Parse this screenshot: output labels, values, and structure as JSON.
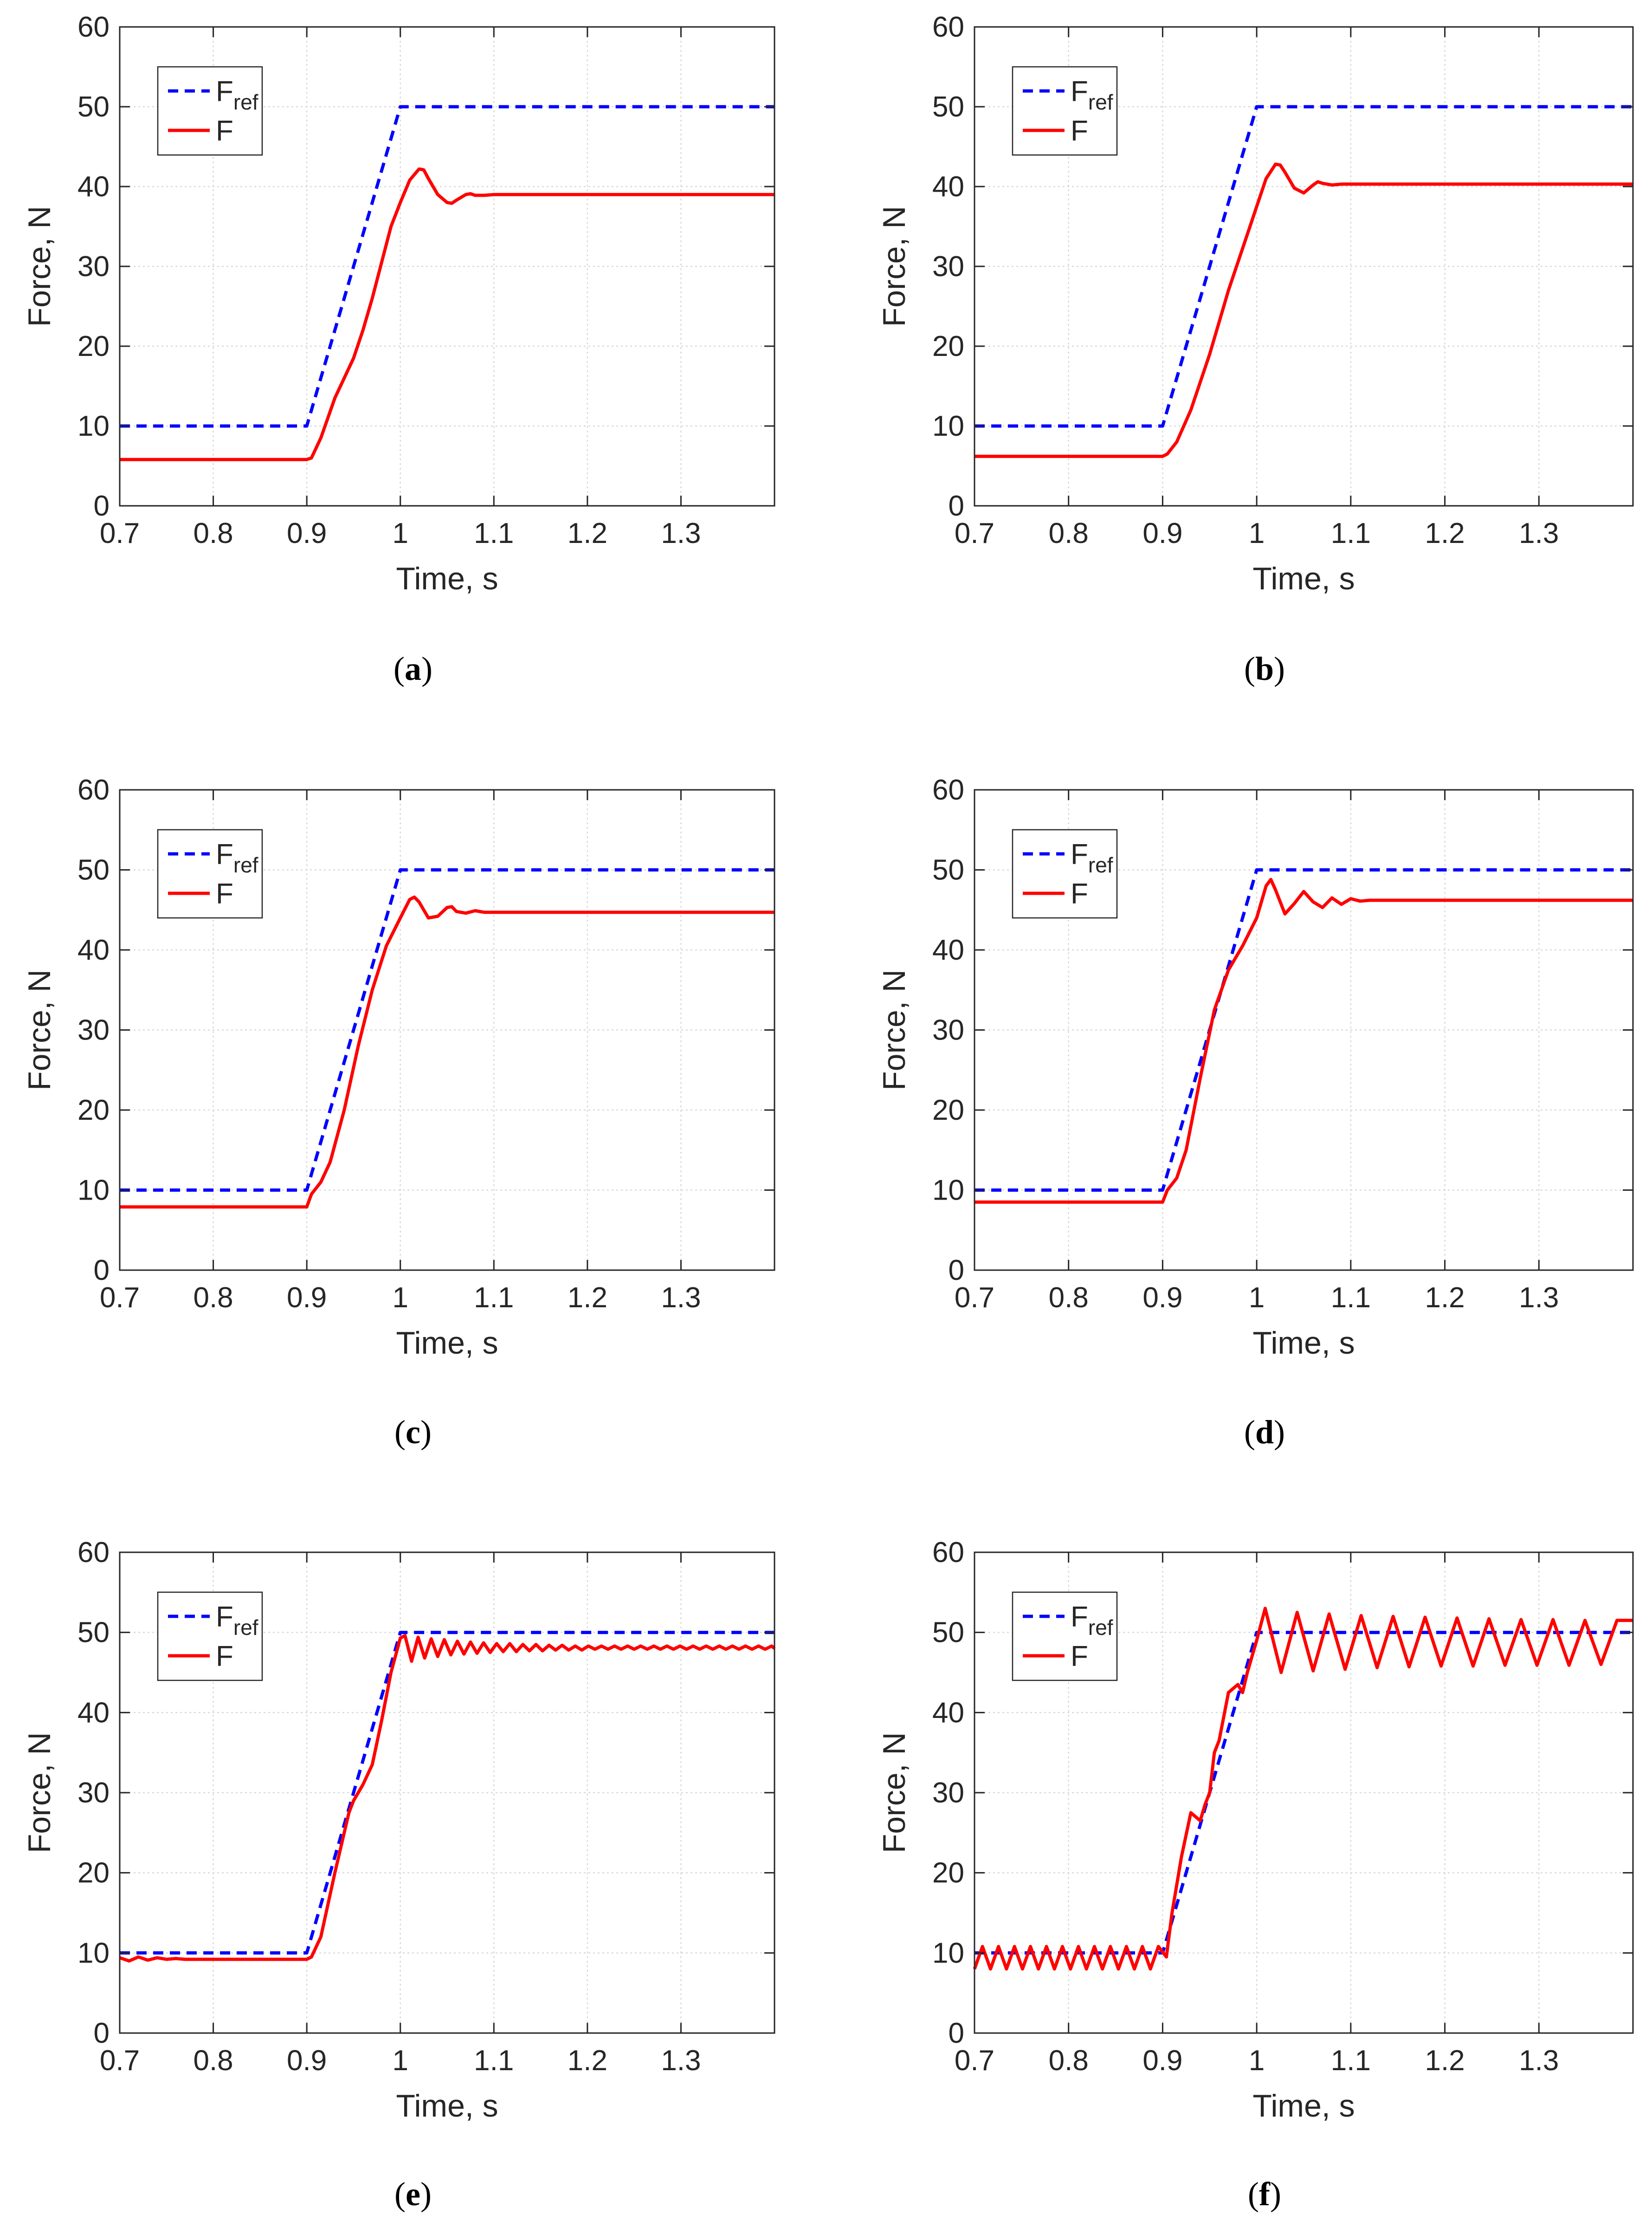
{
  "colors": {
    "reference": "#0000ff",
    "response": "#ff0000",
    "grid": "#d9d9d9",
    "axes": "#262626"
  },
  "chart_data": [
    {
      "type": "line",
      "caption_letter": "a",
      "title": "",
      "xlabel": "Time, s",
      "ylabel": "Force, N",
      "xlim": [
        0.7,
        1.4
      ],
      "ylim": [
        0,
        60
      ],
      "xticks": [
        0.7,
        0.8,
        0.9,
        1,
        1.1,
        1.2,
        1.3
      ],
      "yticks": [
        0,
        10,
        20,
        30,
        40,
        50,
        60
      ],
      "legend": {
        "position": "top-left",
        "entries": [
          {
            "name": "F",
            "sub": "ref"
          },
          {
            "name": "F",
            "sub": ""
          }
        ]
      },
      "series": [
        {
          "name": "F_ref",
          "style": "dashed",
          "color": "#0000ff",
          "x": [
            0.7,
            0.9,
            1.0,
            1.4
          ],
          "y": [
            10,
            10,
            50,
            50
          ]
        },
        {
          "name": "F",
          "style": "solid",
          "color": "#ff0000",
          "x": [
            0.7,
            0.9,
            0.905,
            0.915,
            0.93,
            0.94,
            0.95,
            0.96,
            0.97,
            0.98,
            0.99,
            1.0,
            1.01,
            1.02,
            1.025,
            1.03,
            1.04,
            1.05,
            1.055,
            1.06,
            1.07,
            1.075,
            1.08,
            1.09,
            1.1,
            1.4
          ],
          "y": [
            5.8,
            5.8,
            6.0,
            8.5,
            13.5,
            16.0,
            18.5,
            22.0,
            26.0,
            30.5,
            35.0,
            38.0,
            40.8,
            42.2,
            42.1,
            41.0,
            39.0,
            38.0,
            37.9,
            38.3,
            39.0,
            39.1,
            38.9,
            38.9,
            39.0,
            39.0
          ]
        }
      ]
    },
    {
      "type": "line",
      "caption_letter": "b",
      "title": "",
      "xlabel": "Time, s",
      "ylabel": "Force, N",
      "xlim": [
        0.7,
        1.4
      ],
      "ylim": [
        0,
        60
      ],
      "xticks": [
        0.7,
        0.8,
        0.9,
        1,
        1.1,
        1.2,
        1.3
      ],
      "yticks": [
        0,
        10,
        20,
        30,
        40,
        50,
        60
      ],
      "legend": {
        "position": "top-left",
        "entries": [
          {
            "name": "F",
            "sub": "ref"
          },
          {
            "name": "F",
            "sub": ""
          }
        ]
      },
      "series": [
        {
          "name": "F_ref",
          "style": "dashed",
          "color": "#0000ff",
          "x": [
            0.7,
            0.9,
            1.0,
            1.4
          ],
          "y": [
            10,
            10,
            50,
            50
          ]
        },
        {
          "name": "F",
          "style": "solid",
          "color": "#ff0000",
          "x": [
            0.7,
            0.9,
            0.905,
            0.915,
            0.93,
            0.95,
            0.97,
            0.99,
            1.0,
            1.01,
            1.02,
            1.025,
            1.03,
            1.04,
            1.05,
            1.06,
            1.065,
            1.07,
            1.08,
            1.09,
            1.4
          ],
          "y": [
            6.2,
            6.2,
            6.5,
            8.0,
            12.0,
            19.0,
            27.0,
            34.0,
            37.5,
            41.0,
            42.8,
            42.7,
            41.8,
            39.8,
            39.2,
            40.2,
            40.6,
            40.4,
            40.2,
            40.3,
            40.3
          ]
        }
      ]
    },
    {
      "type": "line",
      "caption_letter": "c",
      "title": "",
      "xlabel": "Time, s",
      "ylabel": "Force, N",
      "xlim": [
        0.7,
        1.4
      ],
      "ylim": [
        0,
        60
      ],
      "xticks": [
        0.7,
        0.8,
        0.9,
        1,
        1.1,
        1.2,
        1.3
      ],
      "yticks": [
        0,
        10,
        20,
        30,
        40,
        50,
        60
      ],
      "legend": {
        "position": "top-left",
        "entries": [
          {
            "name": "F",
            "sub": "ref"
          },
          {
            "name": "F",
            "sub": ""
          }
        ]
      },
      "series": [
        {
          "name": "F_ref",
          "style": "dashed",
          "color": "#0000ff",
          "x": [
            0.7,
            0.9,
            1.0,
            1.4
          ],
          "y": [
            10,
            10,
            50,
            50
          ]
        },
        {
          "name": "F",
          "style": "solid",
          "color": "#ff0000",
          "x": [
            0.7,
            0.9,
            0.905,
            0.915,
            0.925,
            0.94,
            0.955,
            0.97,
            0.985,
            1.0,
            1.01,
            1.015,
            1.02,
            1.03,
            1.04,
            1.05,
            1.055,
            1.06,
            1.07,
            1.08,
            1.09,
            1.4
          ],
          "y": [
            7.9,
            7.9,
            9.5,
            11.0,
            13.5,
            20.0,
            28.0,
            35.0,
            40.5,
            44.0,
            46.3,
            46.6,
            46.0,
            44.0,
            44.2,
            45.3,
            45.4,
            44.8,
            44.6,
            44.9,
            44.7,
            44.7
          ]
        }
      ]
    },
    {
      "type": "line",
      "caption_letter": "d",
      "title": "",
      "xlabel": "Time, s",
      "ylabel": "Force, N",
      "xlim": [
        0.7,
        1.4
      ],
      "ylim": [
        0,
        60
      ],
      "xticks": [
        0.7,
        0.8,
        0.9,
        1,
        1.1,
        1.2,
        1.3
      ],
      "yticks": [
        0,
        10,
        20,
        30,
        40,
        50,
        60
      ],
      "legend": {
        "position": "top-left",
        "entries": [
          {
            "name": "F",
            "sub": "ref"
          },
          {
            "name": "F",
            "sub": ""
          }
        ]
      },
      "series": [
        {
          "name": "F_ref",
          "style": "dashed",
          "color": "#0000ff",
          "x": [
            0.7,
            0.9,
            1.0,
            1.4
          ],
          "y": [
            10,
            10,
            50,
            50
          ]
        },
        {
          "name": "F",
          "style": "solid",
          "color": "#ff0000",
          "x": [
            0.7,
            0.9,
            0.905,
            0.915,
            0.925,
            0.94,
            0.955,
            0.97,
            0.985,
            1.0,
            1.01,
            1.015,
            1.02,
            1.03,
            1.04,
            1.05,
            1.06,
            1.07,
            1.08,
            1.09,
            1.1,
            1.11,
            1.12,
            1.4
          ],
          "y": [
            8.5,
            8.5,
            10.0,
            11.5,
            15.0,
            24.0,
            32.5,
            37.5,
            40.5,
            44.0,
            48.0,
            48.8,
            47.5,
            44.5,
            45.8,
            47.3,
            46.0,
            45.3,
            46.5,
            45.7,
            46.4,
            46.1,
            46.2,
            46.2
          ]
        }
      ]
    },
    {
      "type": "line",
      "caption_letter": "e",
      "title": "",
      "xlabel": "Time, s",
      "ylabel": "Force, N",
      "xlim": [
        0.7,
        1.4
      ],
      "ylim": [
        0,
        60
      ],
      "xticks": [
        0.7,
        0.8,
        0.9,
        1,
        1.1,
        1.2,
        1.3
      ],
      "yticks": [
        0,
        10,
        20,
        30,
        40,
        50,
        60
      ],
      "legend": {
        "position": "top-left",
        "entries": [
          {
            "name": "F",
            "sub": "ref"
          },
          {
            "name": "F",
            "sub": ""
          }
        ]
      },
      "series": [
        {
          "name": "F_ref",
          "style": "dashed",
          "color": "#0000ff",
          "x": [
            0.7,
            0.9,
            1.0,
            1.4
          ],
          "y": [
            10,
            10,
            50,
            50
          ]
        },
        {
          "name": "F",
          "style": "solid",
          "color": "#ff0000",
          "x": [
            0.7,
            0.71,
            0.72,
            0.73,
            0.74,
            0.75,
            0.76,
            0.77,
            0.9,
            0.905,
            0.915,
            0.93,
            0.945,
            0.95,
            0.96,
            0.97,
            0.98,
            0.99,
            1.0,
            1.005,
            1.012,
            1.019,
            1.026,
            1.033,
            1.04,
            1.047,
            1.054,
            1.061,
            1.068,
            1.075,
            1.082,
            1.089,
            1.096,
            1.103,
            1.11,
            1.117,
            1.124,
            1.131,
            1.138,
            1.145,
            1.152,
            1.159,
            1.166,
            1.173,
            1.18,
            1.187,
            1.194,
            1.201,
            1.208,
            1.215,
            1.222,
            1.229,
            1.236,
            1.243,
            1.25,
            1.257,
            1.264,
            1.271,
            1.278,
            1.285,
            1.292,
            1.299,
            1.306,
            1.313,
            1.32,
            1.327,
            1.334,
            1.341,
            1.348,
            1.355,
            1.362,
            1.369,
            1.376,
            1.383,
            1.39,
            1.397,
            1.4
          ],
          "y": [
            9.4,
            9.0,
            9.5,
            9.1,
            9.4,
            9.2,
            9.3,
            9.2,
            9.2,
            9.5,
            12.0,
            20.0,
            27.5,
            29.0,
            31.0,
            33.5,
            39.0,
            45.0,
            49.3,
            49.6,
            46.4,
            49.4,
            46.8,
            49.2,
            47.0,
            49.1,
            47.2,
            48.9,
            47.3,
            48.8,
            47.4,
            48.7,
            47.5,
            48.6,
            47.6,
            48.6,
            47.6,
            48.5,
            47.7,
            48.5,
            47.7,
            48.4,
            47.8,
            48.4,
            47.8,
            48.3,
            47.8,
            48.3,
            47.9,
            48.3,
            47.9,
            48.3,
            47.9,
            48.3,
            47.9,
            48.3,
            47.9,
            48.3,
            47.9,
            48.3,
            47.9,
            48.3,
            47.9,
            48.3,
            47.9,
            48.3,
            47.9,
            48.3,
            47.9,
            48.3,
            47.9,
            48.3,
            47.9,
            48.3,
            47.9,
            48.3,
            48.0
          ]
        }
      ]
    },
    {
      "type": "line",
      "caption_letter": "f",
      "title": "",
      "xlabel": "Time, s",
      "ylabel": "Force, N",
      "xlim": [
        0.7,
        1.4
      ],
      "ylim": [
        0,
        60
      ],
      "xticks": [
        0.7,
        0.8,
        0.9,
        1,
        1.1,
        1.2,
        1.3
      ],
      "yticks": [
        0,
        10,
        20,
        30,
        40,
        50,
        60
      ],
      "legend": {
        "position": "top-left",
        "entries": [
          {
            "name": "F",
            "sub": "ref"
          },
          {
            "name": "F",
            "sub": ""
          }
        ]
      },
      "series": [
        {
          "name": "F_ref",
          "style": "dashed",
          "color": "#0000ff",
          "x": [
            0.7,
            0.9,
            1.0,
            1.4
          ],
          "y": [
            10,
            10,
            50,
            50
          ]
        },
        {
          "name": "F",
          "style": "solid",
          "color": "#ff0000",
          "x": [
            0.7,
            0.7085,
            0.717,
            0.7255,
            0.734,
            0.7425,
            0.751,
            0.7595,
            0.768,
            0.7765,
            0.785,
            0.7935,
            0.802,
            0.8105,
            0.819,
            0.8275,
            0.836,
            0.8445,
            0.853,
            0.8615,
            0.87,
            0.8785,
            0.887,
            0.8955,
            0.904,
            0.91,
            0.92,
            0.93,
            0.94,
            0.945,
            0.95,
            0.955,
            0.96,
            0.97,
            0.98,
            0.985,
            0.99,
            1.0,
            1.009,
            1.026,
            1.043,
            1.06,
            1.077,
            1.094,
            1.111,
            1.128,
            1.145,
            1.162,
            1.179,
            1.196,
            1.213,
            1.23,
            1.247,
            1.264,
            1.281,
            1.298,
            1.315,
            1.332,
            1.349,
            1.366,
            1.383,
            1.4
          ],
          "y": [
            8.0,
            10.8,
            8.0,
            10.8,
            8.0,
            10.8,
            8.0,
            10.8,
            8.0,
            10.8,
            8.0,
            10.8,
            8.0,
            10.8,
            8.0,
            10.8,
            8.0,
            10.8,
            8.0,
            10.8,
            8.0,
            10.8,
            8.0,
            10.8,
            9.5,
            15.0,
            22.0,
            27.5,
            26.5,
            28.5,
            30.0,
            35.0,
            36.5,
            42.5,
            43.5,
            42.5,
            45.0,
            49.0,
            53.0,
            45.0,
            52.5,
            45.2,
            52.3,
            45.4,
            52.1,
            45.6,
            52.0,
            45.7,
            51.9,
            45.8,
            51.8,
            45.8,
            51.7,
            45.9,
            51.6,
            45.9,
            51.6,
            45.9,
            51.5,
            46.0,
            51.5,
            51.5
          ]
        }
      ]
    }
  ]
}
